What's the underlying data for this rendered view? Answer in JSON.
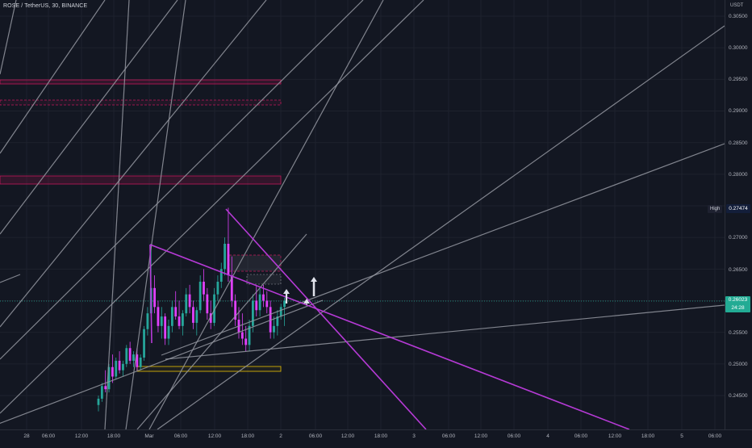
{
  "header": {
    "symbol_title": "ROSE / TetherUS, 30, BINANCE"
  },
  "price_axis": {
    "currency": "USDT",
    "labels": [
      "0.30500",
      "0.30000",
      "0.29500",
      "0.29000",
      "0.28500",
      "0.28000",
      "0.27000",
      "0.26500",
      "0.25500",
      "0.25000",
      "0.24500"
    ]
  },
  "time_axis": {
    "labels": [
      "28",
      "06:00",
      "12:00",
      "18:00",
      "Mar",
      "06:00",
      "12:00",
      "18:00",
      "2",
      "06:00",
      "12:00",
      "18:00",
      "3",
      "06:00",
      "12:00",
      "06:00",
      "4",
      "06:00",
      "12:00",
      "18:00",
      "5",
      "06:00"
    ]
  },
  "markers": {
    "high_label": "High",
    "high_value": "0.27474",
    "current_price": "0.26023",
    "countdown": "24:28"
  },
  "colors": {
    "background": "#131722",
    "up_candle": "#26a69a",
    "down_candle": "#e040fb",
    "trendline_gray": "#9598a1",
    "trendline_purple": "#b63ad6",
    "zone_red": "#c2185b",
    "zone_yellow": "#d4b106",
    "current_price": "#22ab94"
  }
}
